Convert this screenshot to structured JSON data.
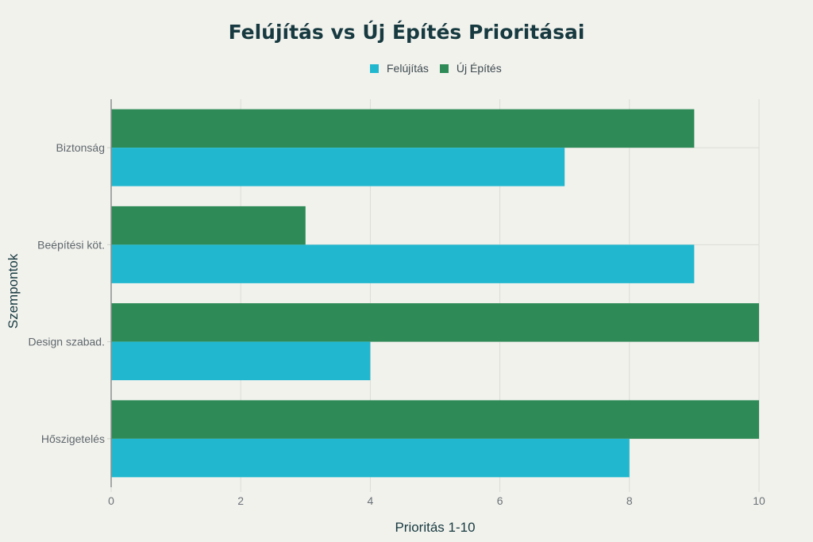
{
  "chart_data": {
    "type": "bar",
    "orientation": "horizontal",
    "title": "Felújítás vs Új Építés Prioritásai",
    "xlabel": "Prioritás 1-10",
    "ylabel": "Szempontok",
    "categories": [
      "Biztonság",
      "Beépítési köt.",
      "Design szabad.",
      "Hőszigetelés"
    ],
    "series": [
      {
        "name": "Felújítás",
        "color": "#21b8cf",
        "values": [
          7,
          9,
          4,
          8
        ]
      },
      {
        "name": "Új Építés",
        "color": "#2e8b57",
        "values": [
          9,
          3,
          10,
          10
        ]
      }
    ],
    "xlim": [
      0,
      10
    ],
    "xticks": [
      "0",
      "2",
      "4",
      "6",
      "8",
      "10"
    ],
    "grid": true,
    "legend_position": "top-center"
  }
}
